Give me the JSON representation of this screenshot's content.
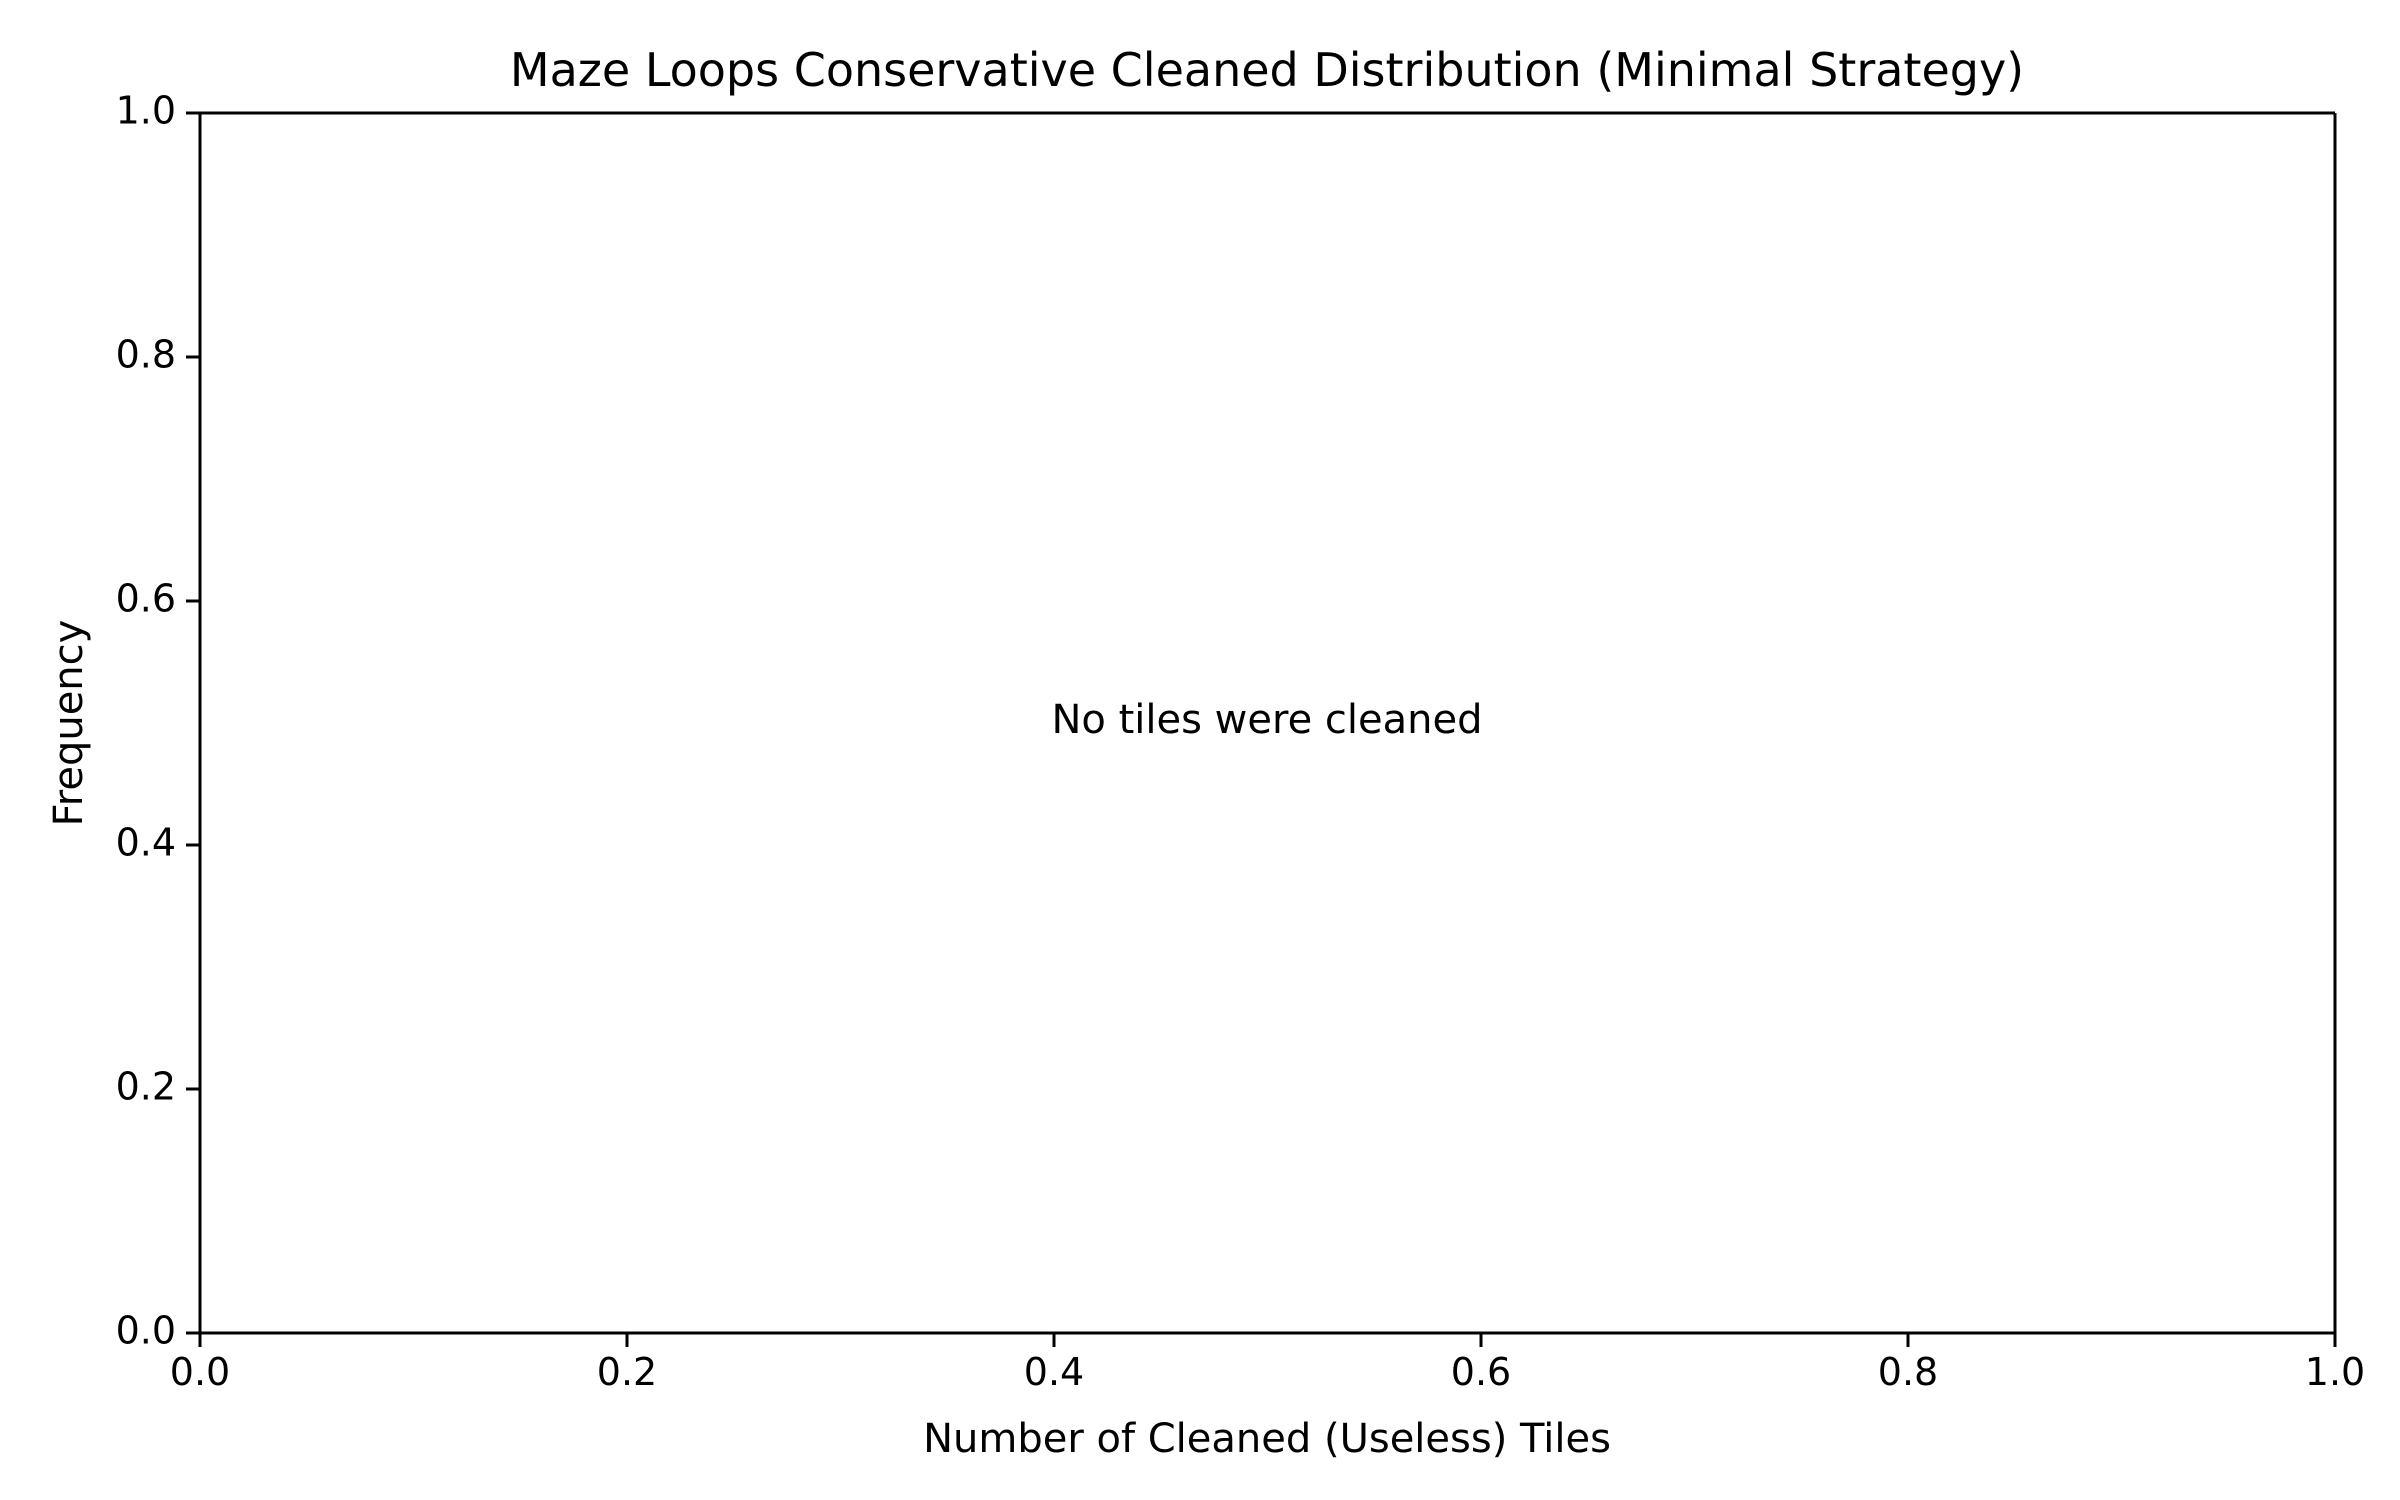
{
  "chart_data": {
    "type": "bar",
    "title": "Maze Loops Conservative Cleaned Distribution (Minimal Strategy)",
    "xlabel": "Number of Cleaned (Useless) Tiles",
    "ylabel": "Frequency",
    "xlim": [
      0,
      1
    ],
    "ylim": [
      0,
      1
    ],
    "xticks": [
      "0.0",
      "0.2",
      "0.4",
      "0.6",
      "0.8",
      "1.0"
    ],
    "yticks": [
      "0.0",
      "0.2",
      "0.4",
      "0.6",
      "0.8",
      "1.0"
    ],
    "categories": [],
    "values": [],
    "annotation": "No tiles were cleaned",
    "grid": false,
    "colors": {
      "axes": "#000000",
      "background": "#ffffff"
    }
  }
}
